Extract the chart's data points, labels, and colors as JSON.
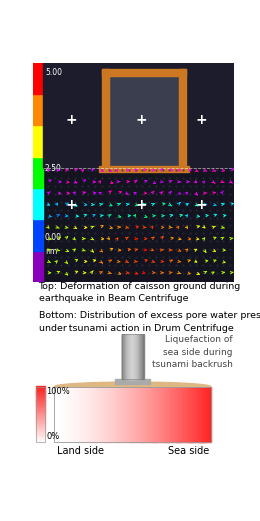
{
  "caption_top": "Top: Deformation of caisson ground during\nearthquake in Beam Centrifuge",
  "caption_bottom": "Bottom: Distribution of excess pore water pressure\nunder tsunami action in Drum Centrifuge",
  "annotation_text": "Liquefaction of\nsea side during\ntsunami backrush",
  "label_land": "Land side",
  "label_sea": "Sea side",
  "label_100": "100%",
  "label_0": "0%",
  "scale_labels": [
    "5.00",
    "2.50",
    "0.00",
    "nm"
  ],
  "figsize": [
    2.6,
    5.21
  ],
  "dpi": 100
}
